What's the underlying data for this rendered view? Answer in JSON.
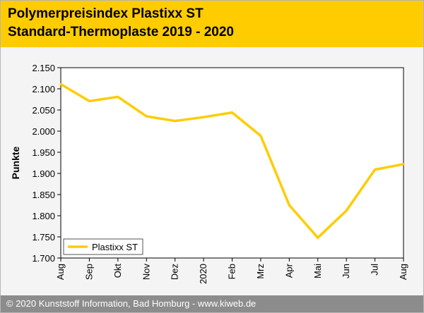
{
  "header": {
    "title_line1": "Polymerpreisindex Plastixx ST",
    "title_line2": "Standard-Thermoplaste 2019 - 2020"
  },
  "footer": {
    "text": "© 2020 Kunststoff Information, Bad Homburg - www.kiweb.de"
  },
  "colors": {
    "accent": "#ffcc00",
    "series": "#ffcc00",
    "footer_bg": "#8c8c8c",
    "plot_bg": "#f4f4f4"
  },
  "chart_data": {
    "type": "line",
    "title": "Polymerpreisindex Plastixx ST Standard-Thermoplaste 2019 - 2020",
    "xlabel": "",
    "ylabel": "Punkte",
    "categories": [
      "Aug",
      "Sep",
      "Okt",
      "Nov",
      "Dez",
      "2020",
      "Feb",
      "Mrz",
      "Apr",
      "Mai",
      "Jun",
      "Jul",
      "Aug"
    ],
    "series": [
      {
        "name": "Plastixx ST",
        "values": [
          2.111,
          2.071,
          2.081,
          2.035,
          2.024,
          2.033,
          2.044,
          1.989,
          1.825,
          1.748,
          1.812,
          1.909,
          1.922
        ]
      }
    ],
    "yticks": [
      "1.700",
      "1.750",
      "1.800",
      "1.850",
      "1.900",
      "1.950",
      "2.000",
      "2.050",
      "2.100",
      "2.150"
    ],
    "ylim": [
      1.7,
      2.15
    ],
    "grid": false,
    "legend_position": "bottom-left"
  }
}
